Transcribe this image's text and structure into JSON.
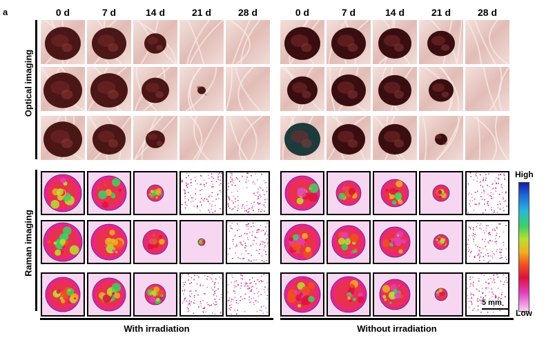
{
  "panel_letter": "a",
  "days": [
    "0 d",
    "7 d",
    "14 d",
    "21 d",
    "28 d",
    "0 d",
    "7 d",
    "14 d",
    "21 d",
    "28 d"
  ],
  "row_labels": {
    "optical": "Optical imaging",
    "raman": "Raman imaging"
  },
  "group_labels": {
    "left": "With irradiation",
    "right": "Without irradiation"
  },
  "colorbar": {
    "high": "High",
    "low": "Low"
  },
  "scale_bar": "5 mm",
  "colors": {
    "tissue": "#ecd2cd",
    "clot": "#4a1616",
    "raman_bg": "#f7d6f2",
    "frame": "#000000"
  }
}
